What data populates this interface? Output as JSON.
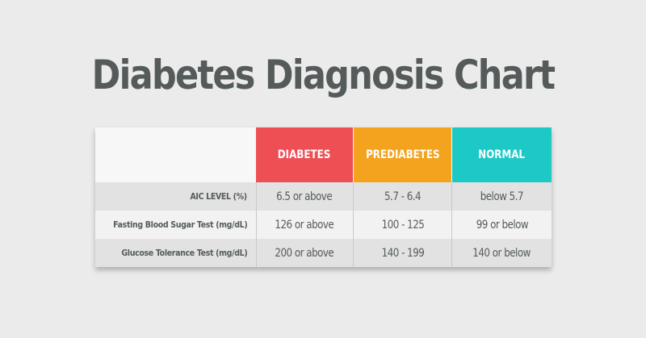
{
  "title": "Diabetes Diagnosis Chart",
  "colors": {
    "background": "#ebebeb",
    "title": "#555b5b",
    "diabetes": "#ee4f55",
    "prediabetes": "#f3a31d",
    "normal": "#1dc9c6",
    "row_shaded": "#e2e2e2",
    "row_light": "#f2f2f2"
  },
  "chart_data": {
    "type": "table",
    "title": "Diabetes Diagnosis Chart",
    "columns": [
      "DIABETES",
      "PREDIABETES",
      "NORMAL"
    ],
    "rows": [
      {
        "label": "AIC LEVEL (%)",
        "values": [
          "6.5 or above",
          "5.7 - 6.4",
          "below 5.7"
        ]
      },
      {
        "label": "Fasting Blood Sugar Test (mg/dL)",
        "values": [
          "126 or above",
          "100 - 125",
          "99 or below"
        ]
      },
      {
        "label": "Glucose Tolerance Test (mg/dL)",
        "values": [
          "200 or above",
          "140 - 199",
          "140 or below"
        ]
      }
    ]
  }
}
